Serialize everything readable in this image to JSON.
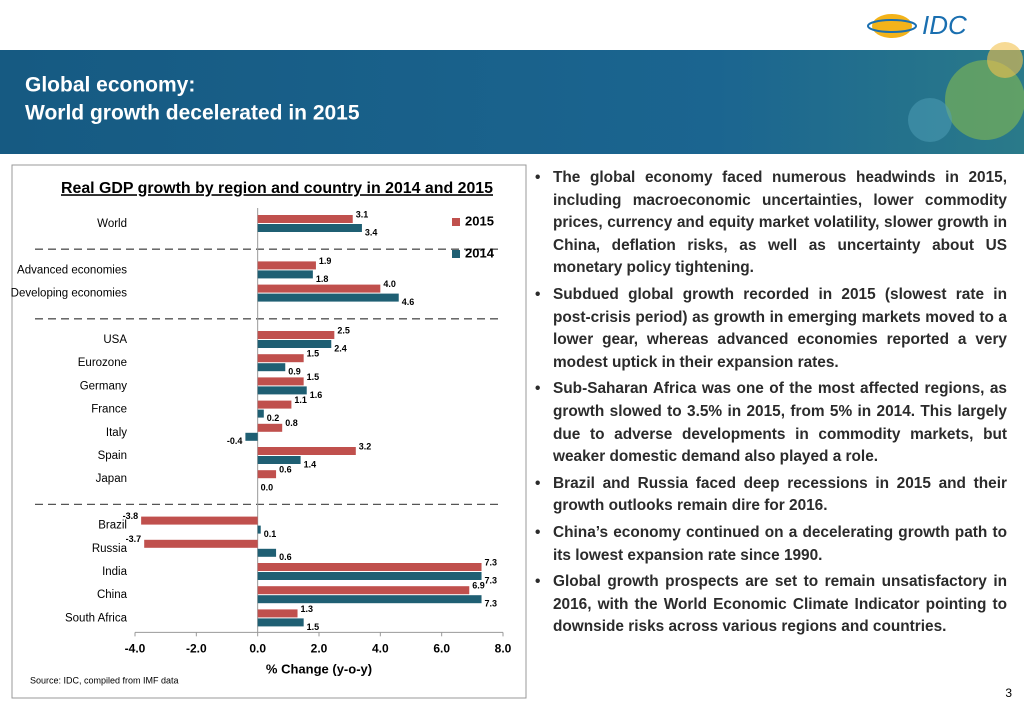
{
  "header": {
    "title_line_1": "Global economy:",
    "title_line_2": "World growth decelerated in 2015",
    "logo": "IDC"
  },
  "chart_data": {
    "type": "hbar",
    "title": "Real GDP growth by region and country in 2014 and 2015",
    "x_label": "% Change (y-o-y)",
    "source": "Source: IDC, compiled from IMF data",
    "categories": [
      "World",
      "Advanced economies",
      "Developing economies",
      "USA",
      "Eurozone",
      "Germany",
      "France",
      "Italy",
      "Spain",
      "Japan",
      "Brazil",
      "Russia",
      "India",
      "China",
      "South Africa"
    ],
    "series": [
      {
        "name": "2015",
        "color": "#c0504d",
        "values": [
          3.1,
          1.9,
          4.0,
          2.5,
          1.5,
          1.5,
          1.1,
          0.8,
          3.2,
          0.6,
          -3.8,
          -3.7,
          7.3,
          6.9,
          1.3
        ],
        "value_labels": [
          "3.1",
          "1.9",
          "4.0",
          "2.5",
          "1.5",
          "1.5",
          "1.1",
          "0.8",
          "3.2",
          "0.6",
          "-3.8",
          "-3.7",
          "7.3",
          "6.9",
          "1.3"
        ]
      },
      {
        "name": "2014",
        "color": "#1f5f73",
        "values": [
          3.4,
          1.8,
          4.6,
          2.4,
          0.9,
          1.6,
          0.2,
          -0.4,
          1.4,
          0.0,
          0.1,
          0.6,
          7.3,
          7.3,
          1.5
        ],
        "value_labels": [
          "3.4",
          "1.8",
          "4.6",
          "2.4",
          "0.9",
          "1.6",
          "0.2",
          "-0.4",
          "1.4",
          "0.0",
          "0.1",
          "0.6",
          "7.3",
          "7.3",
          "1.5"
        ]
      }
    ],
    "xlim": [
      -4,
      8
    ],
    "xticks": [
      {
        "value": -4,
        "label": "-4.0"
      },
      {
        "value": -2,
        "label": "-2.0"
      },
      {
        "value": 0,
        "label": "0.0"
      },
      {
        "value": 2,
        "label": "2.0"
      },
      {
        "value": 4,
        "label": "4.0"
      },
      {
        "value": 6,
        "label": "6.0"
      },
      {
        "value": 8,
        "label": "8.0"
      }
    ],
    "legend": "top-right"
  },
  "bullets": [
    "The global economy faced numerous headwinds in 2015, including macroeconomic uncertainties, lower commodity prices, currency and equity market volatility, slower growth in China, deflation risks, as well as uncertainty about US monetary policy tightening.",
    "Subdued global growth recorded in 2015 (slowest rate in post-crisis period) as growth in emerging markets moved to a lower gear, whereas advanced economies reported a very modest uptick in their expansion rates.",
    "Sub-Saharan Africa was one of the most affected regions, as growth slowed to 3.5% in 2015, from 5% in 2014. This largely due to adverse developments in commodity markets, but weaker domestic demand also played a role.",
    "Brazil and Russia faced deep recessions in 2015 and their growth outlooks remain dire for 2016.",
    "China’s economy continued on a decelerating growth path to its lowest expansion rate since 1990.",
    "Global growth prospects are set to remain unsatisfactory in 2016, with the World Economic Climate Indicator pointing to downside risks across various regions and countries."
  ],
  "page_number": "3"
}
